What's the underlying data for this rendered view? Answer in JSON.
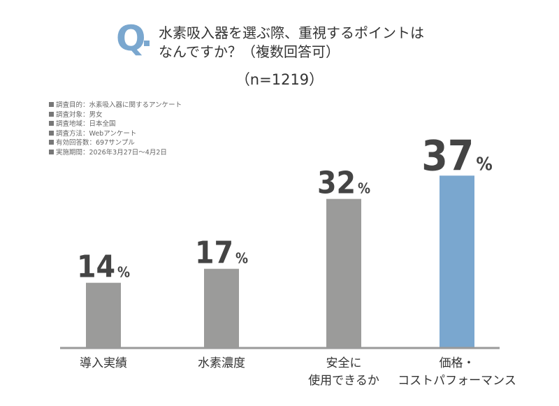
{
  "header": {
    "q_letter": "Q",
    "question": "水素吸入器を選ぶ際、重視するポイントは\nなんですか？（複数回答可）",
    "sample_size": "（n=1219）"
  },
  "notes": [
    "調査目的：水素吸入器に関するアンケート",
    "調査対象：男女",
    "調査地域：日本全国",
    "調査方法：Webアンケート",
    "有効回答数：697サンプル",
    "実施期間：2026年3月27日〜4月2日"
  ],
  "chart_data": {
    "type": "bar",
    "categories": [
      "導入実績",
      "水素濃度",
      "安全に\n使用できるか",
      "価格・\nコストパフォーマンス"
    ],
    "values": [
      14,
      17,
      32,
      37
    ],
    "unit": "%",
    "ylim": [
      0,
      45
    ],
    "grid": false,
    "legend": "none",
    "highlight_index": 3
  },
  "colors": {
    "bar": "#9b9b9a",
    "highlight": "#7aa7cf",
    "axis": "#9a9a9a",
    "value_text": "#444444",
    "accent": "#7aa7cf"
  }
}
